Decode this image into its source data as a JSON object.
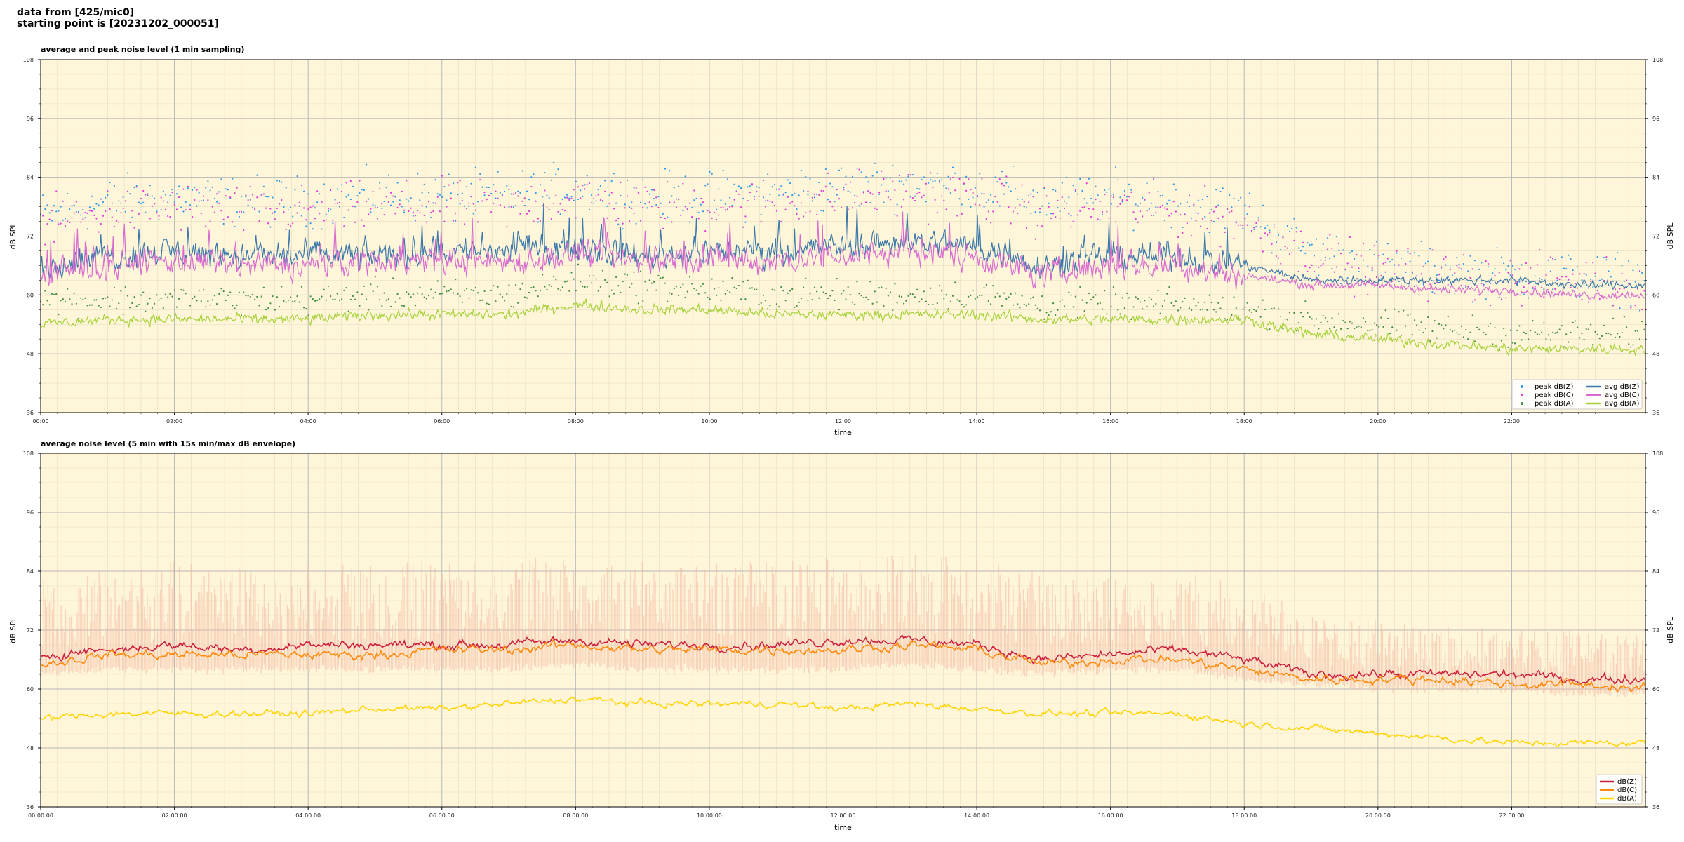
{
  "header": {
    "line1": "data from [425/mic0]",
    "line2": "starting point is [20231202_000051]"
  },
  "colors": {
    "background": "#fff6d9",
    "grid_major": "#b7b7b7",
    "grid_minor": "#e6dcc0",
    "peak_z": "#2f9be8",
    "peak_c": "#e23ad6",
    "peak_a": "#3f8f3f",
    "avg_z": "#3c78aa",
    "avg_c": "#d86ad0",
    "avg_a": "#a5d23a",
    "env": "#f4b8a4",
    "z": "#cc1f3e",
    "c": "#ff8a0a",
    "a": "#ffd400"
  },
  "chart_data": [
    {
      "type": "line",
      "title": "average and peak noise level (1 min sampling)",
      "xlabel": "time",
      "ylabel": "dB SPL",
      "xlim_hours": [
        0,
        24
      ],
      "ylim": [
        36,
        108
      ],
      "yticks": [
        36,
        48,
        60,
        72,
        84,
        96,
        108
      ],
      "xticks": [
        "00:00",
        "02:00",
        "04:00",
        "06:00",
        "08:00",
        "10:00",
        "12:00",
        "14:00",
        "16:00",
        "18:00",
        "20:00",
        "22:00"
      ],
      "grid": true,
      "legend_position": "bottom-right",
      "x_hours": [
        0,
        1,
        2,
        3,
        4,
        5,
        6,
        7,
        8,
        9,
        10,
        11,
        12,
        13,
        14,
        15,
        16,
        17,
        18,
        19,
        20,
        21,
        22,
        23,
        24
      ],
      "series": [
        {
          "name": "peak dB(Z)",
          "kind": "scatter",
          "values": [
            76,
            79,
            80,
            79,
            79,
            80,
            80,
            80,
            82,
            80,
            80,
            81,
            82,
            83,
            82,
            79,
            80,
            79,
            77,
            69,
            66,
            65,
            64,
            64,
            63
          ]
        },
        {
          "name": "peak dB(C)",
          "kind": "scatter",
          "values": [
            74,
            77,
            78,
            77,
            77,
            78,
            78,
            78,
            80,
            78,
            78,
            79,
            80,
            81,
            80,
            77,
            78,
            77,
            75,
            68,
            65,
            64,
            63,
            63,
            62
          ]
        },
        {
          "name": "peak dB(A)",
          "kind": "scatter",
          "values": [
            59,
            59,
            59,
            59,
            59,
            60,
            60,
            60,
            63,
            62,
            61,
            60,
            60,
            60,
            60,
            58,
            58,
            58,
            57,
            55,
            54,
            53,
            52,
            52,
            52
          ]
        },
        {
          "name": "avg dB(Z)",
          "kind": "line",
          "values": [
            66,
            68,
            69,
            68,
            68,
            68,
            69,
            69,
            70,
            68,
            69,
            69,
            70,
            71,
            70,
            66,
            68,
            68,
            66,
            63,
            63,
            63,
            63,
            62,
            62
          ]
        },
        {
          "name": "avg dB(C)",
          "kind": "line",
          "values": [
            64,
            66,
            67,
            66,
            66,
            67,
            67,
            67,
            68,
            67,
            67,
            67,
            68,
            69,
            68,
            64,
            66,
            66,
            64,
            62,
            62,
            61,
            61,
            60,
            60
          ]
        },
        {
          "name": "avg dB(A)",
          "kind": "line",
          "values": [
            54,
            55,
            55,
            55,
            55,
            56,
            56,
            56,
            58,
            57,
            57,
            56,
            56,
            56,
            56,
            55,
            55,
            55,
            55,
            52,
            51,
            50,
            49,
            49,
            49
          ]
        }
      ]
    },
    {
      "type": "line",
      "title": "average noise level (5 min with 15s min/max dB envelope)",
      "xlabel": "time",
      "ylabel": "dB SPL",
      "xlim_hours": [
        0,
        24
      ],
      "ylim": [
        36,
        108
      ],
      "yticks": [
        36,
        48,
        60,
        72,
        84,
        96,
        108
      ],
      "xticks": [
        "00:00:00",
        "02:00:00",
        "04:00:00",
        "06:00:00",
        "08:00:00",
        "10:00:00",
        "12:00:00",
        "14:00:00",
        "16:00:00",
        "18:00:00",
        "20:00:00",
        "22:00:00"
      ],
      "grid": true,
      "legend_position": "bottom-right",
      "x_hours": [
        0,
        1,
        2,
        3,
        4,
        5,
        6,
        7,
        8,
        9,
        10,
        11,
        12,
        13,
        14,
        15,
        16,
        17,
        18,
        19,
        20,
        21,
        22,
        23,
        24
      ],
      "envelope": {
        "min": [
          63,
          64,
          64,
          64,
          64,
          64,
          64,
          64,
          65,
          64,
          64,
          64,
          64,
          65,
          64,
          63,
          64,
          64,
          62,
          61,
          60,
          60,
          60,
          59,
          59
        ],
        "max": [
          84,
          86,
          86,
          85,
          85,
          86,
          86,
          86,
          88,
          86,
          86,
          86,
          87,
          88,
          86,
          84,
          84,
          84,
          82,
          75,
          74,
          73,
          72,
          72,
          71
        ]
      },
      "series": [
        {
          "name": "dB(Z)",
          "values": [
            67,
            68,
            69,
            68,
            69,
            69,
            69,
            69,
            70,
            69,
            69,
            69,
            70,
            70,
            69,
            66,
            67,
            68,
            66,
            63,
            63,
            63,
            63,
            62,
            62
          ]
        },
        {
          "name": "dB(C)",
          "values": [
            65,
            67,
            67,
            67,
            67,
            67,
            68,
            68,
            69,
            68,
            68,
            68,
            68,
            69,
            68,
            65,
            66,
            66,
            64,
            62,
            62,
            62,
            61,
            61,
            60
          ]
        },
        {
          "name": "dB(A)",
          "values": [
            54,
            55,
            55,
            55,
            55,
            56,
            56,
            57,
            58,
            57,
            57,
            57,
            56,
            57,
            56,
            55,
            55,
            55,
            53,
            52,
            51,
            50,
            49,
            49,
            49
          ]
        }
      ]
    }
  ]
}
